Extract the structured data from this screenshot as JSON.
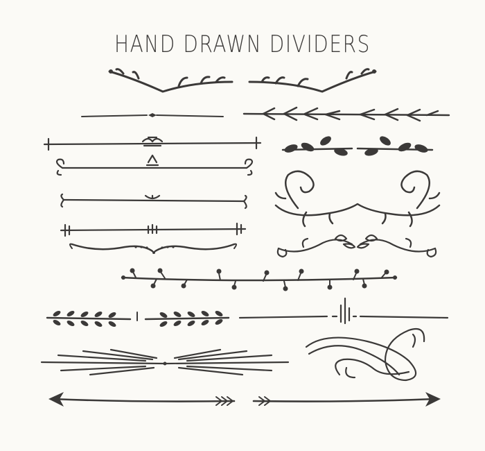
{
  "title": "HAND DRAWN DIVIDERS",
  "colors": {
    "ink": "#3b3938",
    "background": "#fbfaf6"
  }
}
